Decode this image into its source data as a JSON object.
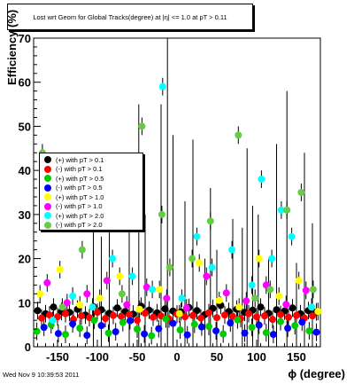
{
  "title": "Lost wrt Geom for Global Tracks(degree) at |η| <= 1.0 at pT > 0.11",
  "footer": "Wed Nov  9 10:39:53 2011",
  "chart_data": {
    "type": "scatter",
    "xlabel": "ϕ (degree)",
    "ylabel": "Efficiency (%)",
    "xlim": [
      -180,
      180
    ],
    "ylim": [
      0,
      70
    ],
    "xticks": [
      -150,
      -100,
      -50,
      0,
      50,
      100,
      150
    ],
    "yticks": [
      0,
      10,
      20,
      30,
      40,
      50,
      60,
      70
    ],
    "grid": false,
    "legend_position": "left",
    "series": [
      {
        "name": "(+) with pT > 0.1",
        "color": "#000000",
        "x": [
          -175,
          -165,
          -155,
          -145,
          -135,
          -125,
          -115,
          -105,
          -95,
          -85,
          -75,
          -65,
          -55,
          -45,
          -35,
          -25,
          -15,
          -5,
          5,
          15,
          25,
          35,
          45,
          55,
          65,
          75,
          85,
          95,
          105,
          115,
          125,
          135,
          145,
          155,
          165,
          175
        ],
        "y": [
          8.2,
          7.5,
          9,
          8,
          7.8,
          8.5,
          7.2,
          9.1,
          8.4,
          7.6,
          8.8,
          8,
          7.4,
          9.2,
          8.3,
          7.7,
          8.6,
          8.1,
          7.9,
          8.9,
          8.2,
          7.3,
          8.7,
          9.4,
          8,
          8.5,
          7.8,
          8.3,
          9,
          7.6,
          8.4,
          8.1,
          8.8,
          7.5,
          8.2,
          7.9
        ]
      },
      {
        "name": "(-) with pT > 0.1",
        "color": "#ff0000",
        "x": [
          -170,
          -160,
          -150,
          -140,
          -130,
          -120,
          -110,
          -100,
          -90,
          -80,
          -70,
          -60,
          -50,
          -40,
          -30,
          -20,
          -10,
          0,
          10,
          20,
          30,
          40,
          50,
          60,
          70,
          80,
          90,
          100,
          110,
          120,
          130,
          140,
          150,
          160,
          170
        ],
        "y": [
          6.5,
          7.2,
          6.8,
          7.5,
          6.2,
          7,
          6.6,
          7.8,
          6.4,
          7.1,
          6.9,
          7.3,
          6,
          7.6,
          6.7,
          7,
          6.3,
          7.4,
          6.8,
          7.1,
          6.5,
          7.7,
          6.6,
          7.2,
          6.9,
          6.4,
          7.5,
          6.8,
          7,
          6.2,
          7.3,
          6.7,
          7.1,
          6.5,
          7
        ]
      },
      {
        "name": "(+) with pT > 0.5",
        "color": "#00cc00",
        "x": [
          -176,
          -158,
          -140,
          -122,
          -104,
          -86,
          -68,
          -50,
          -32,
          -14,
          4,
          22,
          40,
          58,
          76,
          94,
          112,
          130,
          148,
          166
        ],
        "y": [
          3.5,
          5,
          2.8,
          4.2,
          6,
          3.1,
          5.5,
          4,
          2.5,
          6.3,
          3.8,
          5.1,
          4.6,
          2.9,
          6.1,
          4.4,
          3.2,
          5.7,
          4.8,
          3.6
        ]
      },
      {
        "name": "(-) with pT > 0.5",
        "color": "#0000ff",
        "x": [
          -167,
          -149,
          -131,
          -113,
          -95,
          -77,
          -59,
          -41,
          -23,
          -5,
          13,
          31,
          49,
          67,
          85,
          103,
          121,
          139,
          157,
          175
        ],
        "y": [
          4.4,
          3,
          5.2,
          2.6,
          4.8,
          3.4,
          5.9,
          2.9,
          4.1,
          5.3,
          2.7,
          4.5,
          3.6,
          5.4,
          3.1,
          4.9,
          2.8,
          4.2,
          5.6,
          3.3
        ]
      },
      {
        "name": "(+) with pT > 1.0",
        "color": "#ffff00",
        "x": [
          -172,
          -147,
          -122,
          -97,
          -72,
          -47,
          -22,
          3,
          28,
          53,
          78,
          103,
          128,
          153,
          177
        ],
        "y": [
          12,
          17.5,
          9.5,
          11,
          16,
          8.5,
          13,
          7.5,
          19,
          10.5,
          9,
          20,
          11.5,
          15,
          8
        ]
      },
      {
        "name": "(-) with pT > 1.0",
        "color": "#ff00ff",
        "x": [
          -163,
          -138,
          -113,
          -88,
          -63,
          -38,
          -13,
          12,
          37,
          62,
          87,
          112,
          137,
          162
        ],
        "y": [
          14.5,
          10,
          12,
          15,
          9.5,
          13.5,
          11,
          8.8,
          16,
          12.2,
          10.4,
          14,
          9.6,
          12.8
        ]
      },
      {
        "name": "(+) with pT > 2.0",
        "color": "#00ffff",
        "x": [
          -156,
          -131,
          -106,
          -81,
          -56,
          -31,
          -18,
          6,
          25,
          44,
          69,
          94,
          106,
          119,
          131,
          144,
          169
        ],
        "y": [
          6,
          11.5,
          9,
          20,
          16,
          13,
          59,
          11,
          25,
          18,
          22,
          14,
          38,
          20,
          31,
          25,
          9
        ]
      },
      {
        "name": "(-) with pT > 2.0",
        "color": "#66cc44",
        "x": [
          -169,
          -144,
          -119,
          -94,
          -69,
          -44,
          -19,
          -9,
          19,
          42,
          77,
          98,
          117,
          138,
          156,
          171
        ],
        "y": [
          44,
          9,
          22,
          31,
          12,
          50,
          30,
          18,
          20,
          28.5,
          48,
          11,
          13,
          31,
          35,
          13
        ]
      }
    ],
    "error_bar_tops": [
      [
        -105,
        29
      ],
      [
        -95,
        25
      ],
      [
        -85,
        27
      ],
      [
        -60,
        38
      ],
      [
        -48,
        55
      ],
      [
        -40,
        30
      ],
      [
        -20,
        55
      ],
      [
        -12,
        70
      ],
      [
        -5,
        48
      ],
      [
        10,
        33
      ],
      [
        20,
        47
      ],
      [
        35,
        20
      ],
      [
        42,
        36
      ],
      [
        50,
        22
      ],
      [
        70,
        29
      ],
      [
        82,
        27
      ],
      [
        88,
        45
      ],
      [
        95,
        32
      ],
      [
        102,
        30
      ],
      [
        115,
        20
      ],
      [
        125,
        46
      ],
      [
        138,
        58
      ],
      [
        150,
        19
      ],
      [
        160,
        44
      ],
      [
        170,
        28
      ]
    ]
  }
}
